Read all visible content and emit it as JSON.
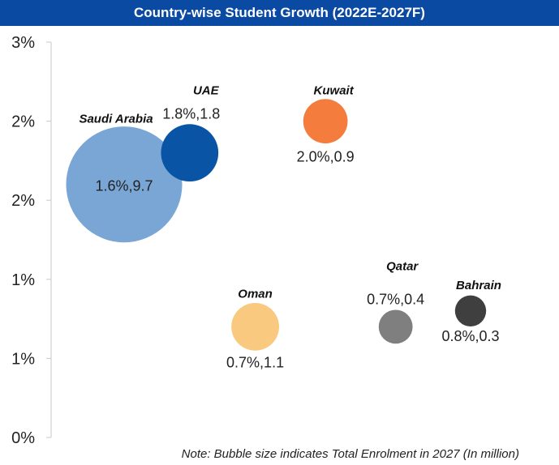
{
  "chart_data": {
    "type": "bubble",
    "title": "Country-wise Student Growth (2022E-2027F)",
    "y_ticks": [
      "0%",
      "1%",
      "1%",
      "2%",
      "2%",
      "3%"
    ],
    "ylim": [
      0,
      2.5
    ],
    "xlim": [
      0,
      10
    ],
    "grid": false,
    "note": "Note: Bubble size indicates Total Enrolment in 2027 (In million)",
    "series": [
      {
        "name": "Saudi Arabia",
        "y": 1.6,
        "enrolment": 9.7,
        "label": "1.6%,9.7",
        "color": "#7aa6d6",
        "x": 1.3
      },
      {
        "name": "UAE",
        "y": 1.8,
        "enrolment": 1.8,
        "label": "1.8%,1.8",
        "color": "#0a54a6",
        "x": 2.7
      },
      {
        "name": "Kuwait",
        "y": 2.0,
        "enrolment": 0.9,
        "label": "2.0%,0.9",
        "color": "#f47c3c",
        "x": 5.6
      },
      {
        "name": "Oman",
        "y": 0.7,
        "enrolment": 1.1,
        "label": "0.7%,1.1",
        "color": "#f8c97e",
        "x": 4.1
      },
      {
        "name": "Qatar",
        "y": 0.7,
        "enrolment": 0.4,
        "label": "0.7%,0.4",
        "color": "#7f7f7f",
        "x": 7.1
      },
      {
        "name": "Bahrain",
        "y": 0.8,
        "enrolment": 0.3,
        "label": "0.8%,0.3",
        "color": "#3f3f3f",
        "x": 8.7
      }
    ]
  }
}
